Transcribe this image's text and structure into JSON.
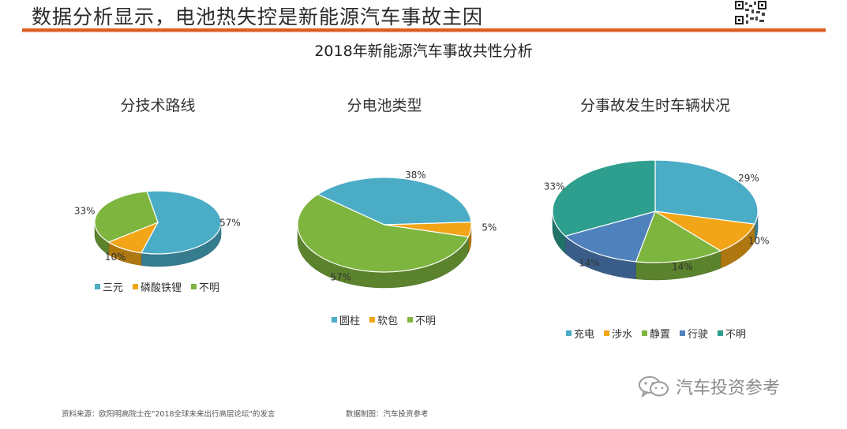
{
  "header": {
    "title": "数据分析显示，电池热失控是新能源汽车事故主因"
  },
  "chart_title": "2018年新能源汽车事故共性分析",
  "footer": {
    "source": "资料来源：欧阳明高院士在\"2018全球未来出行高层论坛\"的发言",
    "credit": "数据制图：汽车投资参考"
  },
  "watermark": {
    "text": "汽车投资参考",
    "icon": "wechat-icon"
  },
  "chart_data": [
    {
      "type": "pie",
      "title": "分技术路线",
      "categories": [
        "三元",
        "磷酸铁锂",
        "不明"
      ],
      "values": [
        57,
        10,
        33
      ],
      "labels": [
        "57%",
        "10%",
        "33%"
      ],
      "colors": [
        "#4bacc6",
        "#f2a516",
        "#7eb53f"
      ],
      "legend_position": "bottom"
    },
    {
      "type": "pie",
      "title": "分电池类型",
      "categories": [
        "圆柱",
        "软包",
        "不明"
      ],
      "values": [
        38,
        5,
        57
      ],
      "labels": [
        "38%",
        "5%",
        "57%"
      ],
      "colors": [
        "#4bacc6",
        "#f2a516",
        "#7eb53f"
      ],
      "legend_position": "bottom"
    },
    {
      "type": "pie",
      "title": "分事故发生时车辆状况",
      "categories": [
        "充电",
        "涉水",
        "静置",
        "行驶",
        "不明"
      ],
      "values": [
        29,
        10,
        14,
        14,
        33
      ],
      "labels": [
        "29%",
        "10%",
        "14%",
        "14%",
        "33%"
      ],
      "colors": [
        "#4bacc6",
        "#f2a516",
        "#7eb53f",
        "#4f81bd",
        "#2e9e8e"
      ],
      "legend_position": "bottom"
    }
  ]
}
